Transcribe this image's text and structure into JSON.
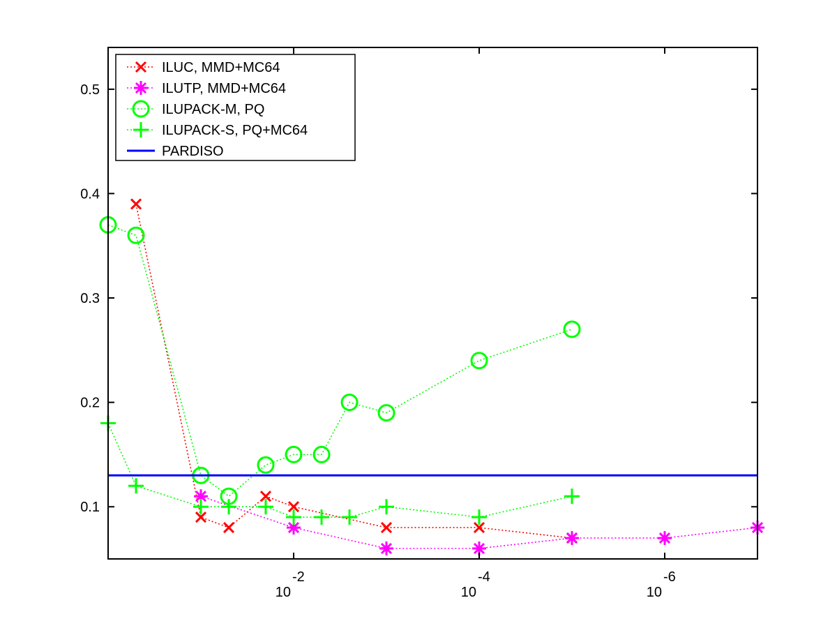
{
  "chart_data": {
    "type": "line",
    "x_scale": "log-reversed",
    "xlim": [
      1.0,
      1e-07
    ],
    "ylim": [
      0.05,
      0.54
    ],
    "grid": false,
    "legend_position": "top-left",
    "x_ticks": [
      {
        "value": 0.01,
        "base": "10",
        "exp": "-2"
      },
      {
        "value": 0.0001,
        "base": "10",
        "exp": "-4"
      },
      {
        "value": 1e-06,
        "base": "10",
        "exp": "-6"
      }
    ],
    "y_ticks": [
      {
        "value": 0.1,
        "label": "0.1"
      },
      {
        "value": 0.2,
        "label": "0.2"
      },
      {
        "value": 0.3,
        "label": "0.3"
      },
      {
        "value": 0.4,
        "label": "0.4"
      },
      {
        "value": 0.5,
        "label": "0.5"
      }
    ],
    "series": [
      {
        "name": "ILUC, MMD+MC64",
        "color": "#ff0000",
        "marker": "x",
        "linestyle": "dotted",
        "x": [
          0.5,
          0.1,
          0.05,
          0.02,
          0.01,
          0.001,
          0.0001,
          1e-05
        ],
        "y": [
          0.39,
          0.09,
          0.08,
          0.11,
          0.1,
          0.08,
          0.08,
          0.07
        ]
      },
      {
        "name": "ILUTP, MMD+MC64",
        "color": "#ff00ff",
        "marker": "asterisk",
        "linestyle": "dotted",
        "x": [
          0.1,
          0.01,
          0.001,
          0.0001,
          1e-05,
          1e-06,
          1e-07
        ],
        "y": [
          0.11,
          0.08,
          0.06,
          0.06,
          0.07,
          0.07,
          0.08
        ]
      },
      {
        "name": "ILUPACK-M, PQ",
        "color": "#00ff00",
        "marker": "circle",
        "linestyle": "dotted",
        "x": [
          1.0,
          0.5,
          0.1,
          0.05,
          0.02,
          0.01,
          0.005,
          0.0025,
          0.001,
          0.0001,
          1e-05
        ],
        "y": [
          0.37,
          0.36,
          0.13,
          0.11,
          0.14,
          0.15,
          0.15,
          0.2,
          0.19,
          0.24,
          0.27
        ]
      },
      {
        "name": "ILUPACK-S, PQ+MC64",
        "color": "#00ff00",
        "marker": "plus",
        "linestyle": "dotted",
        "x": [
          1.0,
          0.5,
          0.1,
          0.05,
          0.02,
          0.01,
          0.005,
          0.0025,
          0.001,
          0.0001,
          1e-05
        ],
        "y": [
          0.18,
          0.12,
          0.1,
          0.1,
          0.1,
          0.09,
          0.09,
          0.09,
          0.1,
          0.09,
          0.11
        ]
      },
      {
        "name": "PARDISO",
        "color": "#0000ff",
        "marker": "none",
        "linestyle": "solid",
        "x": [
          1.0,
          1e-07
        ],
        "y": [
          0.13,
          0.13
        ]
      }
    ]
  }
}
